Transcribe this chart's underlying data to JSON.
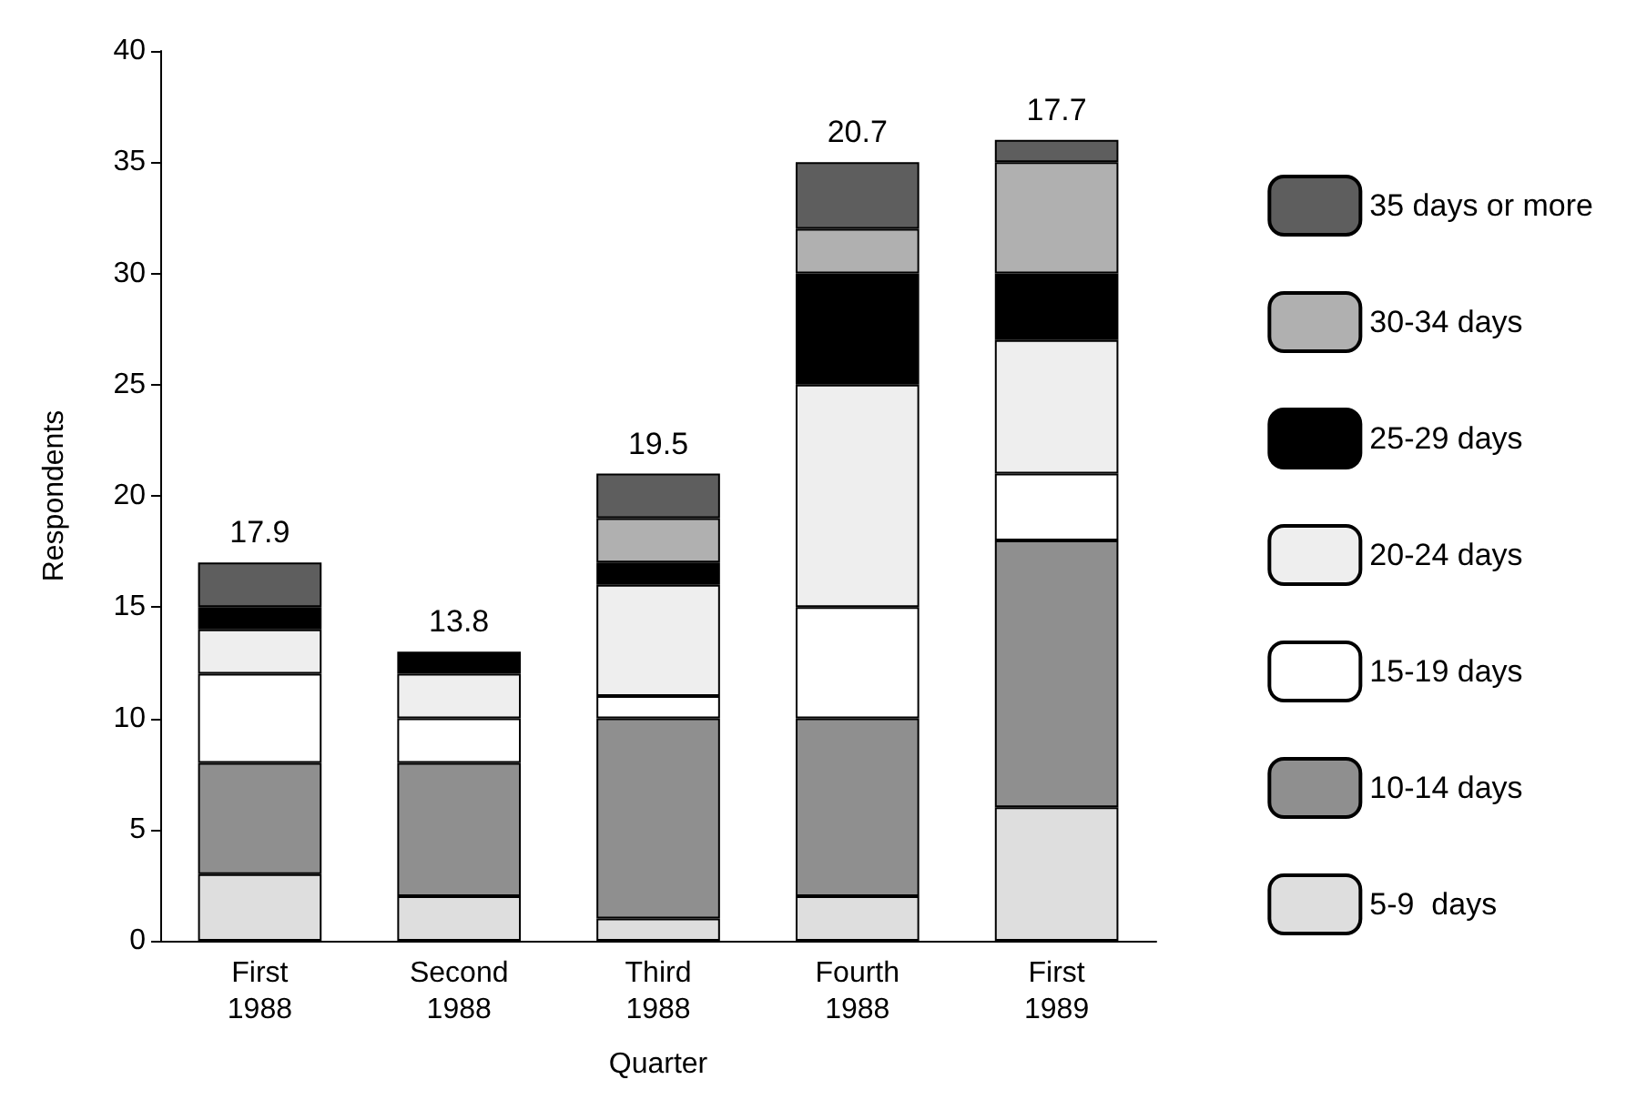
{
  "chart_data": {
    "type": "bar",
    "stacked": true,
    "xlabel": "Quarter",
    "ylabel": "Respondents",
    "categories": [
      "First\n1988",
      "Second\n1988",
      "Third\n1988",
      "Fourth\n1988",
      "First\n1989"
    ],
    "series": [
      {
        "name": "5-9  days",
        "color": "#dedede",
        "values": [
          3,
          2,
          1,
          2,
          6
        ]
      },
      {
        "name": "10-14 days",
        "color": "#8f8f8f",
        "values": [
          5,
          6,
          9,
          8,
          12
        ]
      },
      {
        "name": "15-19 days",
        "color": "#ffffff",
        "values": [
          4,
          2,
          1,
          5,
          3
        ]
      },
      {
        "name": "20-24 days",
        "color": "#eeeeee",
        "values": [
          2,
          2,
          5,
          10,
          6
        ]
      },
      {
        "name": "25-29 days",
        "color": "#000000",
        "values": [
          1,
          1,
          1,
          5,
          3
        ]
      },
      {
        "name": "30-34 days",
        "color": "#b0b0b0",
        "values": [
          null,
          null,
          2,
          2,
          5
        ]
      },
      {
        "name": "35 days or more",
        "color": "#5e5e5e",
        "values": [
          2,
          null,
          2,
          3,
          1
        ]
      }
    ],
    "ylim": [
      0,
      40
    ],
    "yticks": [
      0,
      5,
      10,
      15,
      20,
      25,
      30,
      35,
      40
    ],
    "grid": false,
    "legend": "right",
    "annotations": [
      {
        "text": "17.9",
        "x": "First\n1988",
        "y": 17
      },
      {
        "text": "13.8",
        "x": "Second\n1988",
        "y": 13
      },
      {
        "text": "19.5",
        "x": "Third\n1988",
        "y": 21
      },
      {
        "text": "20.7",
        "x": "Fourth\n1988",
        "y": 35
      },
      {
        "text": "17.7",
        "x": "First\n1989",
        "y": 36
      }
    ]
  }
}
